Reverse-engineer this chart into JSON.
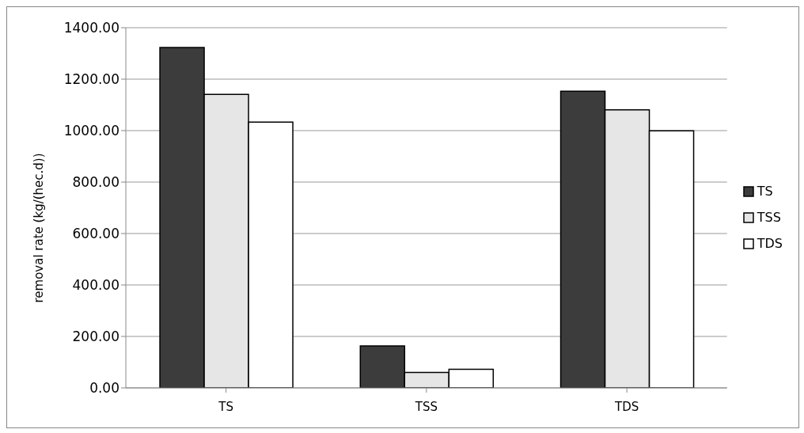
{
  "chart_data": {
    "type": "bar",
    "ylabel": "removal rate  (kg/(hec.d))",
    "categories": [
      "TS",
      "TSS",
      "TDS"
    ],
    "series": [
      {
        "name": "TS",
        "color": "#3c3c3c",
        "values": [
          1323,
          163,
          1153
        ]
      },
      {
        "name": "TSS",
        "color": "#e6e6e6",
        "values": [
          1141,
          60,
          1081
        ]
      },
      {
        "name": "TDS",
        "color": "#ffffff",
        "values": [
          1033,
          72,
          999
        ]
      }
    ],
    "ylim": [
      0,
      1400
    ],
    "yticks": [
      {
        "value": 0,
        "label": "0.00"
      },
      {
        "value": 200,
        "label": "200.00"
      },
      {
        "value": 400,
        "label": "400.00"
      },
      {
        "value": 600,
        "label": "600.00"
      },
      {
        "value": 800,
        "label": "800.00"
      },
      {
        "value": 1000,
        "label": "1000.00"
      },
      {
        "value": 1200,
        "label": "1200.00"
      },
      {
        "value": 1400,
        "label": "1400.00"
      }
    ],
    "grid": "y",
    "legend": "right"
  }
}
